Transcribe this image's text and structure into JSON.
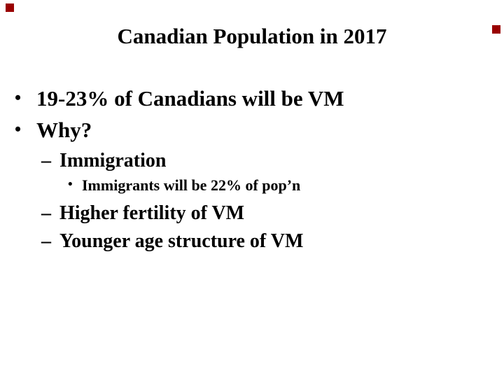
{
  "slide": {
    "title": "Canadian Population in 2017",
    "bullets": [
      {
        "level": 1,
        "marker": "•",
        "text": "19-23% of Canadians will be VM"
      },
      {
        "level": 1,
        "marker": "•",
        "text": "Why?"
      },
      {
        "level": 2,
        "marker": "–",
        "text": "Immigration"
      },
      {
        "level": 3,
        "marker": "•",
        "text": "Immigrants will be 22% of pop’n"
      },
      {
        "level": 2,
        "marker": "–",
        "text": "Higher fertility of VM"
      },
      {
        "level": 2,
        "marker": "–",
        "text": "Younger age structure of VM"
      }
    ],
    "colors": {
      "background": "#ffffff",
      "text": "#000000",
      "corner_marker": "#990000"
    }
  }
}
